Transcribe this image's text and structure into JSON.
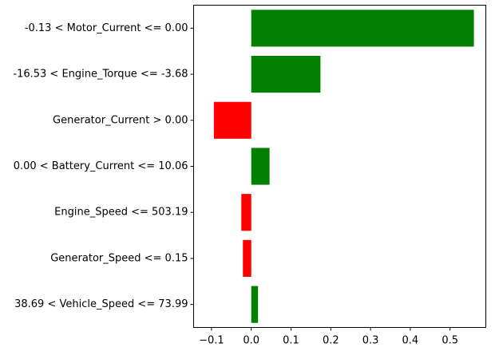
{
  "chart_data": {
    "type": "bar",
    "orientation": "horizontal",
    "title": "",
    "xlabel": "",
    "ylabel": "",
    "xlim": [
      -0.145,
      0.59
    ],
    "xticks": [
      -0.1,
      0.0,
      0.1,
      0.2,
      0.3,
      0.4,
      0.5
    ],
    "xtick_labels": [
      "−0.1",
      "0.0",
      "0.1",
      "0.2",
      "0.3",
      "0.4",
      "0.5"
    ],
    "grid": false,
    "legend": "none",
    "categories": [
      "-0.13 < Motor_Current <= 0.00",
      "-16.53 < Engine_Torque <= -3.68",
      "Generator_Current > 0.00",
      "0.00 < Battery_Current <= 10.06",
      "Engine_Speed <= 503.19",
      "Generator_Speed <= 0.15",
      "38.69 < Vehicle_Speed <= 73.99"
    ],
    "values": [
      0.56,
      0.174,
      -0.094,
      0.046,
      -0.025,
      -0.021,
      0.017
    ],
    "positive_color": "#008000",
    "negative_color": "#ff0000"
  }
}
